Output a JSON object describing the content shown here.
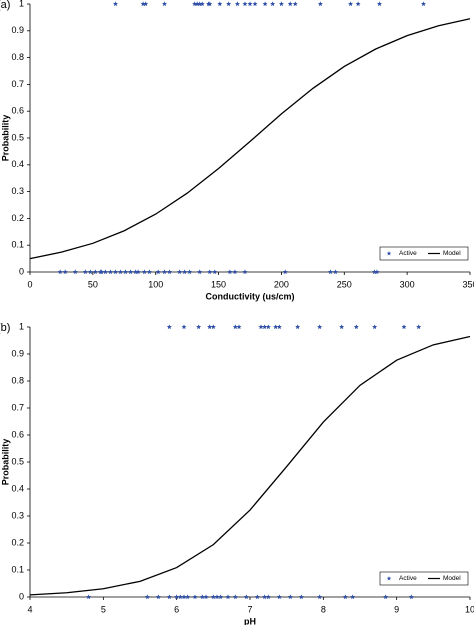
{
  "chart_data": [
    {
      "type": "scatter",
      "panel_label": "(a)",
      "xlabel": "Conductivity (us/cm)",
      "ylabel": "Probability",
      "xlim": [
        0,
        350
      ],
      "ylim": [
        0,
        1
      ],
      "xticks": [
        0,
        50,
        100,
        150,
        200,
        250,
        300,
        350
      ],
      "yticks": [
        0,
        0.1,
        0.2,
        0.3,
        0.4,
        0.5,
        0.6,
        0.7,
        0.8,
        0.9,
        1
      ],
      "legend": "lower right",
      "series": [
        {
          "name": "Active",
          "mode": "markers",
          "color": "#2f4fa8",
          "x": [
            68,
            90,
            92,
            107,
            131,
            133,
            135,
            137,
            142,
            143,
            151,
            158,
            165,
            171,
            175,
            179,
            187,
            193,
            200,
            207,
            211,
            231,
            255,
            261,
            278,
            313,
            24,
            28,
            36,
            44,
            48,
            52,
            56,
            57,
            60,
            64,
            68,
            72,
            76,
            80,
            84,
            86,
            91,
            95,
            102,
            107,
            111,
            119,
            123,
            127,
            135,
            143,
            147,
            159,
            163,
            171,
            203,
            239,
            243,
            274,
            276
          ],
          "values": [
            1,
            1,
            1,
            1,
            1,
            1,
            1,
            1,
            1,
            1,
            1,
            1,
            1,
            1,
            1,
            1,
            1,
            1,
            1,
            1,
            1,
            1,
            1,
            1,
            1,
            1,
            0,
            0,
            0,
            0,
            0,
            0,
            0,
            0,
            0,
            0,
            0,
            0,
            0,
            0,
            0,
            0,
            0,
            0,
            0,
            0,
            0,
            0,
            0,
            0,
            0,
            0,
            0,
            0,
            0,
            0,
            0,
            0,
            0,
            0,
            0
          ]
        },
        {
          "name": "Model",
          "mode": "line",
          "color": "#000000",
          "x": [
            0,
            25,
            50,
            75,
            100,
            125,
            150,
            175,
            200,
            225,
            250,
            275,
            300,
            325,
            350
          ],
          "values": [
            0.05,
            0.074,
            0.107,
            0.154,
            0.216,
            0.294,
            0.386,
            0.487,
            0.59,
            0.685,
            0.767,
            0.832,
            0.882,
            0.919,
            0.945
          ]
        }
      ]
    },
    {
      "type": "scatter",
      "panel_label": "(b)",
      "xlabel": "pH",
      "ylabel": "Probability",
      "xlim": [
        4,
        10
      ],
      "ylim": [
        0,
        1
      ],
      "xticks": [
        4,
        5,
        6,
        7,
        8,
        9,
        10
      ],
      "yticks": [
        0,
        0.1,
        0.2,
        0.3,
        0.4,
        0.5,
        0.6,
        0.7,
        0.8,
        0.9,
        1
      ],
      "legend": "lower right",
      "series": [
        {
          "name": "Active",
          "mode": "markers",
          "color": "#2f4fa8",
          "x": [
            5.9,
            6.1,
            6.3,
            6.45,
            6.5,
            6.8,
            6.85,
            7.15,
            7.2,
            7.25,
            7.35,
            7.4,
            7.65,
            7.95,
            8.25,
            8.45,
            8.7,
            9.1,
            9.3,
            4.8,
            5.6,
            5.75,
            5.9,
            6.0,
            6.05,
            6.1,
            6.15,
            6.25,
            6.35,
            6.4,
            6.5,
            6.55,
            6.6,
            6.7,
            6.8,
            6.95,
            7.1,
            7.2,
            7.25,
            7.4,
            7.55,
            7.7,
            7.95,
            8.3,
            8.4,
            8.85,
            9.2
          ],
          "values": [
            1,
            1,
            1,
            1,
            1,
            1,
            1,
            1,
            1,
            1,
            1,
            1,
            1,
            1,
            1,
            1,
            1,
            1,
            1,
            0,
            0,
            0,
            0,
            0,
            0,
            0,
            0,
            0,
            0,
            0,
            0,
            0,
            0,
            0,
            0,
            0,
            0,
            0,
            0,
            0,
            0,
            0,
            0,
            0,
            0,
            0,
            0
          ]
        },
        {
          "name": "Model",
          "mode": "line",
          "color": "#000000",
          "x": [
            4,
            4.5,
            5,
            5.5,
            6,
            6.5,
            7,
            7.5,
            8,
            8.5,
            9,
            9.5,
            10
          ],
          "values": [
            0.008,
            0.0157,
            0.0305,
            0.058,
            0.109,
            0.194,
            0.322,
            0.483,
            0.648,
            0.784,
            0.877,
            0.934,
            0.965
          ]
        }
      ]
    }
  ]
}
